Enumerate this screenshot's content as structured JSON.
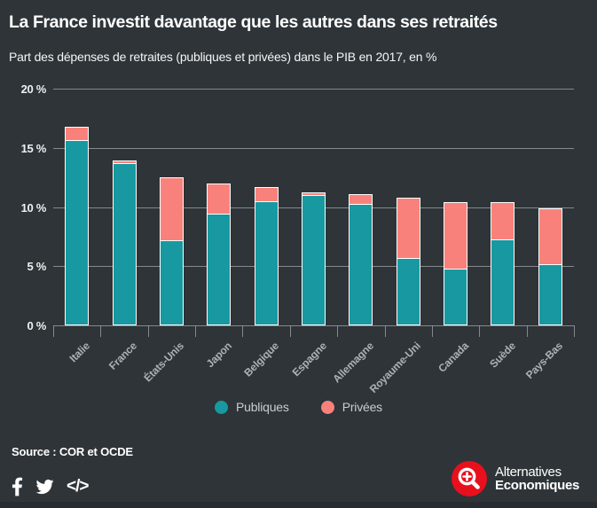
{
  "header": {
    "title": "La France investit davantage que les autres dans ses retraités",
    "subtitle": "Part des dépenses de retraites (publiques et privées) dans le PIB en 2017, en %"
  },
  "chart_data": {
    "type": "bar",
    "stacked": true,
    "title": "La France investit davantage que les autres dans ses retraités",
    "subtitle": "Part des dépenses de retraites (publiques et privées) dans le PIB en 2017, en %",
    "categories": [
      "Italie",
      "France",
      "États-Unis",
      "Japon",
      "Belgique",
      "Espagne",
      "Allemagne",
      "Royaume-Uni",
      "Canada",
      "Suède",
      "Pays-Bas"
    ],
    "series": [
      {
        "name": "Publiques",
        "color": "#1898A0",
        "values": [
          15.6,
          13.6,
          7.1,
          9.4,
          10.4,
          10.9,
          10.2,
          5.6,
          4.7,
          7.2,
          5.1
        ]
      },
      {
        "name": "Privées",
        "color": "#F8827B",
        "values": [
          1.2,
          0.3,
          5.4,
          2.6,
          1.3,
          0.3,
          0.9,
          5.2,
          5.7,
          3.2,
          4.8
        ]
      }
    ],
    "xlabel": "",
    "ylabel": "",
    "ylim": [
      0,
      20
    ],
    "yticks": [
      {
        "value": 0,
        "label": "0 %"
      },
      {
        "value": 5,
        "label": "5 %"
      },
      {
        "value": 10,
        "label": "10 %"
      },
      {
        "value": 15,
        "label": "15 %"
      },
      {
        "value": 20,
        "label": "20 %"
      }
    ],
    "grid": true,
    "legend_position": "bottom"
  },
  "legend": {
    "items": [
      {
        "label": "Publiques",
        "color": "#1898A0"
      },
      {
        "label": "Privées",
        "color": "#F8827B"
      }
    ]
  },
  "source": {
    "text": "Source : COR et OCDE"
  },
  "footer": {
    "share_icons": [
      "facebook-icon",
      "twitter-icon",
      "embed-code-icon"
    ],
    "embed_glyph": "</>",
    "logo": {
      "line1": "Alternatives",
      "line2": "Economiques"
    }
  },
  "colors": {
    "background": "#2E3438",
    "publiques": "#1898A0",
    "privees": "#F8827B",
    "gridline": "#94999C",
    "axis_text": "#EEF1F1",
    "category_text": "#ACB1B4",
    "logo_red": "#E8101D",
    "title_text": "#FFFFFF"
  }
}
